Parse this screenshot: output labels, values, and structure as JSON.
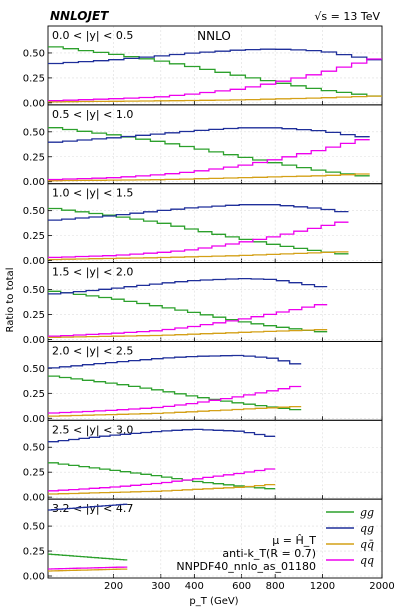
{
  "header": {
    "generator": "NNLOJET",
    "energy": "√s = 13 TeV",
    "order": "NNLO"
  },
  "info": {
    "scale": "μ = Ĥ_T",
    "algorithm": "anti-k_T(R = 0.7)",
    "pdf": "NNPDF40_nnlo_as_01180"
  },
  "colors": {
    "gg": "#2ca02c",
    "qg": "#1f2f9a",
    "qqbar": "#d4a017",
    "qq": "#ee00ee"
  },
  "chart_data": {
    "type": "line",
    "drawstyle": "steps",
    "xlabel": "p_T (GeV)",
    "ylabel": "Ratio to total",
    "xscale": "log",
    "xlim": [
      114,
      2000
    ],
    "x_ticks": [
      200,
      300,
      400,
      600,
      800,
      1200,
      2000
    ],
    "ylim": [
      0,
      0.75
    ],
    "y_ticks": [
      "0.00",
      "0.25",
      "0.50"
    ],
    "grid": true,
    "legend": {
      "placement": "bottom-right",
      "entries": [
        {
          "key": "gg",
          "label": "gg"
        },
        {
          "key": "qg",
          "label": "qg"
        },
        {
          "key": "qqbar",
          "label": "qq̄"
        },
        {
          "key": "qq",
          "label": "qq"
        }
      ]
    },
    "panels": [
      {
        "label": "0.0 < |y| < 0.5",
        "pt_max": 2000,
        "series": {
          "gg": [
            [
              114,
              0.57
            ],
            [
              200,
              0.49
            ],
            [
              300,
              0.42
            ],
            [
              400,
              0.36
            ],
            [
              600,
              0.27
            ],
            [
              800,
              0.21
            ],
            [
              1200,
              0.13
            ],
            [
              2000,
              0.06
            ]
          ],
          "qg": [
            [
              114,
              0.39
            ],
            [
              200,
              0.43
            ],
            [
              300,
              0.47
            ],
            [
              400,
              0.5
            ],
            [
              600,
              0.53
            ],
            [
              800,
              0.54
            ],
            [
              1200,
              0.52
            ],
            [
              2000,
              0.42
            ]
          ],
          "qqbar": [
            [
              114,
              0.01
            ],
            [
              300,
              0.02
            ],
            [
              600,
              0.03
            ],
            [
              1200,
              0.05
            ],
            [
              2000,
              0.07
            ]
          ],
          "qq": [
            [
              114,
              0.02
            ],
            [
              200,
              0.04
            ],
            [
              300,
              0.06
            ],
            [
              400,
              0.09
            ],
            [
              600,
              0.14
            ],
            [
              800,
              0.2
            ],
            [
              1200,
              0.3
            ],
            [
              2000,
              0.46
            ]
          ]
        }
      },
      {
        "label": "0.5 < |y| < 1.0",
        "pt_max": 1800,
        "series": {
          "gg": [
            [
              114,
              0.55
            ],
            [
              200,
              0.47
            ],
            [
              300,
              0.4
            ],
            [
              400,
              0.34
            ],
            [
              600,
              0.25
            ],
            [
              800,
              0.19
            ],
            [
              1200,
              0.11
            ],
            [
              1800,
              0.05
            ]
          ],
          "qg": [
            [
              114,
              0.39
            ],
            [
              200,
              0.44
            ],
            [
              300,
              0.48
            ],
            [
              400,
              0.51
            ],
            [
              600,
              0.54
            ],
            [
              800,
              0.54
            ],
            [
              1200,
              0.51
            ],
            [
              1800,
              0.44
            ]
          ],
          "qqbar": [
            [
              114,
              0.01
            ],
            [
              300,
              0.02
            ],
            [
              600,
              0.04
            ],
            [
              1200,
              0.06
            ],
            [
              1800,
              0.08
            ]
          ],
          "qq": [
            [
              114,
              0.02
            ],
            [
              200,
              0.04
            ],
            [
              300,
              0.07
            ],
            [
              400,
              0.1
            ],
            [
              600,
              0.16
            ],
            [
              800,
              0.22
            ],
            [
              1200,
              0.32
            ],
            [
              1800,
              0.44
            ]
          ]
        }
      },
      {
        "label": "1.0 < |y| < 1.5",
        "pt_max": 1500,
        "series": {
          "gg": [
            [
              114,
              0.53
            ],
            [
              200,
              0.45
            ],
            [
              300,
              0.38
            ],
            [
              400,
              0.31
            ],
            [
              600,
              0.22
            ],
            [
              800,
              0.16
            ],
            [
              1200,
              0.09
            ],
            [
              1500,
              0.06
            ]
          ],
          "qg": [
            [
              114,
              0.4
            ],
            [
              200,
              0.45
            ],
            [
              300,
              0.5
            ],
            [
              400,
              0.53
            ],
            [
              600,
              0.56
            ],
            [
              800,
              0.56
            ],
            [
              1200,
              0.52
            ],
            [
              1500,
              0.48
            ]
          ],
          "qqbar": [
            [
              114,
              0.01
            ],
            [
              300,
              0.03
            ],
            [
              600,
              0.05
            ],
            [
              1200,
              0.08
            ],
            [
              1500,
              0.09
            ]
          ],
          "qq": [
            [
              114,
              0.03
            ],
            [
              200,
              0.05
            ],
            [
              300,
              0.08
            ],
            [
              400,
              0.11
            ],
            [
              600,
              0.18
            ],
            [
              800,
              0.24
            ],
            [
              1200,
              0.34
            ],
            [
              1500,
              0.4
            ]
          ]
        }
      },
      {
        "label": "1.5 < |y| < 2.0",
        "pt_max": 1250,
        "series": {
          "gg": [
            [
              114,
              0.49
            ],
            [
              200,
              0.41
            ],
            [
              300,
              0.33
            ],
            [
              400,
              0.27
            ],
            [
              600,
              0.18
            ],
            [
              800,
              0.13
            ],
            [
              1250,
              0.07
            ]
          ],
          "qg": [
            [
              114,
              0.45
            ],
            [
              200,
              0.51
            ],
            [
              300,
              0.56
            ],
            [
              400,
              0.59
            ],
            [
              600,
              0.61
            ],
            [
              800,
              0.6
            ],
            [
              1250,
              0.52
            ]
          ],
          "qqbar": [
            [
              114,
              0.02
            ],
            [
              300,
              0.04
            ],
            [
              600,
              0.07
            ],
            [
              1250,
              0.1
            ]
          ],
          "qq": [
            [
              114,
              0.03
            ],
            [
              200,
              0.06
            ],
            [
              300,
              0.09
            ],
            [
              400,
              0.13
            ],
            [
              600,
              0.2
            ],
            [
              800,
              0.26
            ],
            [
              1250,
              0.36
            ]
          ]
        }
      },
      {
        "label": "2.0 < |y| < 2.5",
        "pt_max": 1000,
        "series": {
          "gg": [
            [
              114,
              0.43
            ],
            [
              200,
              0.35
            ],
            [
              300,
              0.28
            ],
            [
              400,
              0.22
            ],
            [
              600,
              0.15
            ],
            [
              800,
              0.11
            ],
            [
              1000,
              0.08
            ]
          ],
          "qg": [
            [
              114,
              0.5
            ],
            [
              200,
              0.56
            ],
            [
              300,
              0.6
            ],
            [
              400,
              0.62
            ],
            [
              600,
              0.63
            ],
            [
              800,
              0.6
            ],
            [
              1000,
              0.53
            ]
          ],
          "qqbar": [
            [
              114,
              0.02
            ],
            [
              300,
              0.05
            ],
            [
              600,
              0.09
            ],
            [
              1000,
              0.12
            ]
          ],
          "qq": [
            [
              114,
              0.05
            ],
            [
              200,
              0.08
            ],
            [
              300,
              0.11
            ],
            [
              400,
              0.15
            ],
            [
              600,
              0.22
            ],
            [
              800,
              0.28
            ],
            [
              1000,
              0.33
            ]
          ]
        }
      },
      {
        "label": "2.5 < |y| < 3.0",
        "pt_max": 800,
        "series": {
          "gg": [
            [
              114,
              0.35
            ],
            [
              200,
              0.27
            ],
            [
              300,
              0.21
            ],
            [
              400,
              0.16
            ],
            [
              600,
              0.11
            ],
            [
              800,
              0.08
            ]
          ],
          "qg": [
            [
              114,
              0.55
            ],
            [
              200,
              0.62
            ],
            [
              300,
              0.66
            ],
            [
              400,
              0.68
            ],
            [
              600,
              0.66
            ],
            [
              800,
              0.6
            ]
          ],
          "qqbar": [
            [
              114,
              0.03
            ],
            [
              300,
              0.06
            ],
            [
              600,
              0.1
            ],
            [
              800,
              0.13
            ]
          ],
          "qq": [
            [
              114,
              0.06
            ],
            [
              200,
              0.1
            ],
            [
              300,
              0.14
            ],
            [
              400,
              0.18
            ],
            [
              600,
              0.24
            ],
            [
              800,
              0.29
            ]
          ]
        }
      },
      {
        "label": "3.2 < |y| < 4.7",
        "pt_max": 225,
        "series": {
          "gg": [
            [
              114,
              0.22
            ],
            [
              160,
              0.19
            ],
            [
              225,
              0.16
            ]
          ],
          "qg": [
            [
              114,
              0.66
            ],
            [
              160,
              0.69
            ],
            [
              225,
              0.72
            ]
          ],
          "qqbar": [
            [
              114,
              0.05
            ],
            [
              160,
              0.06
            ],
            [
              225,
              0.07
            ]
          ],
          "qq": [
            [
              114,
              0.07
            ],
            [
              160,
              0.08
            ],
            [
              225,
              0.09
            ]
          ]
        }
      }
    ]
  }
}
